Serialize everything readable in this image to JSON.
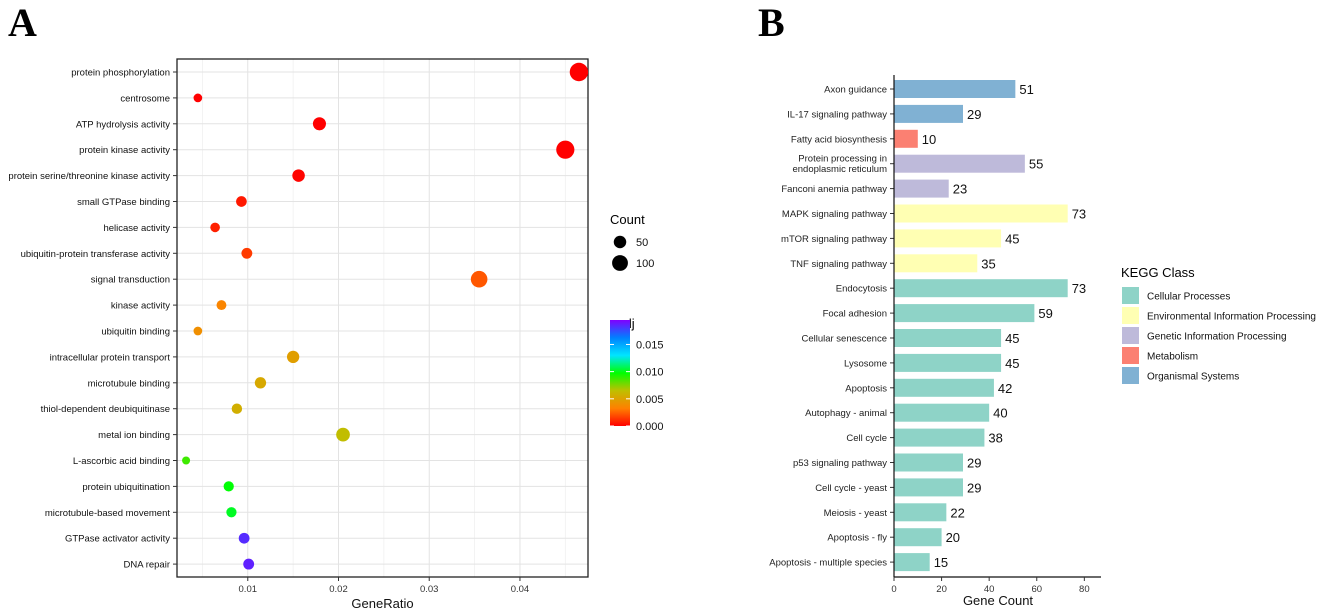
{
  "panel_a_label": "A",
  "panel_b_label": "B",
  "chart_data": [
    {
      "type": "scatter",
      "panel": "A",
      "xlabel": "GeneRatio",
      "ylabel": "",
      "xlim": [
        0.0022,
        0.0475
      ],
      "xticks": [
        0.01,
        0.02,
        0.03,
        0.04
      ],
      "xtick_labels": [
        "0.01",
        "0.02",
        "0.03",
        "0.04"
      ],
      "grid": true,
      "categories": [
        "protein phosphorylation",
        "centrosome",
        "ATP hydrolysis activity",
        "protein kinase activity",
        "protein serine/threonine kinase activity",
        "small GTPase binding",
        "helicase activity",
        "ubiquitin-protein transferase activity",
        "signal transduction",
        "kinase activity",
        "ubiquitin binding",
        "intracellular protein transport",
        "microtubule binding",
        "thiol-dependent deubiquitinase",
        "metal ion binding",
        "L-ascorbic acid binding",
        "protein ubiquitination",
        "microtubule-based movement",
        "GTPase activator activity",
        "DNA repair"
      ],
      "gene_ratio": [
        0.0465,
        0.0045,
        0.0179,
        0.045,
        0.0156,
        0.0093,
        0.0064,
        0.0099,
        0.0355,
        0.0071,
        0.0045,
        0.015,
        0.0114,
        0.0088,
        0.0205,
        0.0032,
        0.0079,
        0.0082,
        0.0096,
        0.0101
      ],
      "count": [
        150,
        14,
        58,
        145,
        50,
        30,
        21,
        32,
        114,
        23,
        14,
        48,
        37,
        28,
        66,
        10,
        26,
        26,
        31,
        32
      ],
      "padj": [
        0.0,
        0.0,
        0.0,
        0.0,
        0.0001,
        0.0006,
        0.0008,
        0.0015,
        0.0022,
        0.0035,
        0.004,
        0.0048,
        0.0053,
        0.0056,
        0.0064,
        0.0087,
        0.0098,
        0.0102,
        0.0184,
        0.0187
      ],
      "size_legend": {
        "title": "Count",
        "entries": [
          50,
          100
        ]
      },
      "color_legend": {
        "title": "padj",
        "range": [
          0.0,
          0.0195
        ],
        "ticks": [
          0.0,
          0.005,
          0.01,
          0.015
        ],
        "tick_labels": [
          "0.000",
          "0.005",
          "0.010",
          "0.015"
        ],
        "colors": [
          "#ff0000",
          "#ff8000",
          "#bfbf00",
          "#00ff00",
          "#00e5ff",
          "#0080ff",
          "#8000ff"
        ]
      }
    },
    {
      "type": "bar",
      "panel": "B",
      "orientation": "horizontal",
      "xlabel": "Gene Count",
      "xlim": [
        0,
        87
      ],
      "xticks": [
        0,
        20,
        40,
        60,
        80
      ],
      "xtick_labels": [
        "0",
        "20",
        "40",
        "60",
        "80"
      ],
      "categories": [
        "Axon guidance",
        "IL-17 signaling pathway",
        "Fatty acid biosynthesis",
        "Protein processing in\nendoplasmic reticulum",
        "Fanconi anemia pathway",
        "MAPK signaling pathway",
        "mTOR signaling pathway",
        "TNF signaling pathway",
        "Endocytosis",
        "Focal adhesion",
        "Cellular senescence",
        "Lysosome",
        "Apoptosis",
        "Autophagy - animal",
        "Cell cycle",
        "p53 signaling pathway",
        "Cell cycle - yeast",
        "Meiosis - yeast",
        "Apoptosis - fly",
        "Apoptosis - multiple species"
      ],
      "values": [
        51,
        29,
        10,
        55,
        23,
        73,
        45,
        35,
        73,
        59,
        45,
        45,
        42,
        40,
        38,
        29,
        29,
        22,
        20,
        15
      ],
      "classes": [
        4,
        4,
        3,
        2,
        2,
        1,
        1,
        1,
        0,
        0,
        0,
        0,
        0,
        0,
        0,
        0,
        0,
        0,
        0,
        0
      ],
      "legend": {
        "title": "KEGG Class",
        "entries": [
          "Cellular Processes",
          "Environmental Information Processing",
          "Genetic Information Processing",
          "Metabolism",
          "Organismal Systems"
        ],
        "colors": [
          "#8ed3c7",
          "#ffffb3",
          "#bebada",
          "#fb8072",
          "#80b1d3"
        ]
      }
    }
  ]
}
